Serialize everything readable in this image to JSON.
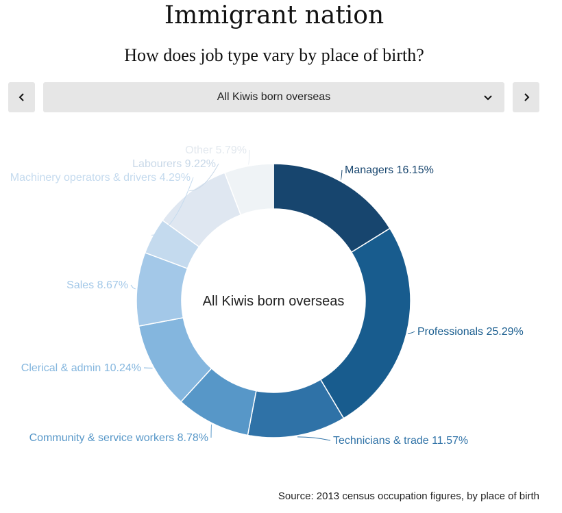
{
  "header": {
    "title": "Immigrant nation",
    "subtitle": "How does job type vary by place of birth?"
  },
  "controls": {
    "selected": "All Kiwis born overseas",
    "prev_icon": "chevron-left-icon",
    "next_icon": "chevron-right-icon",
    "dropdown_icon": "chevron-down-icon"
  },
  "chart_data": {
    "type": "pie",
    "style": "donut",
    "center_label": "All Kiwis born overseas",
    "slices": [
      {
        "label": "Managers 16.15%",
        "name": "Managers",
        "value": 16.15,
        "color": "#17456e"
      },
      {
        "label": "Professionals 25.29%",
        "name": "Professionals",
        "value": 25.29,
        "color": "#185c8e"
      },
      {
        "label": "Technicians & trade 11.57%",
        "name": "Technicians & trade",
        "value": 11.57,
        "color": "#2f72a7"
      },
      {
        "label": "Community & service workers 8.78%",
        "name": "Community & service workers",
        "value": 8.78,
        "color": "#5797c8"
      },
      {
        "label": "Clerical & admin 10.24%",
        "name": "Clerical & admin",
        "value": 10.24,
        "color": "#84b6de"
      },
      {
        "label": "Sales 8.67%",
        "name": "Sales",
        "value": 8.67,
        "color": "#a3c8e8"
      },
      {
        "label": "Machinery operators & drivers 4.29%",
        "name": "Machinery operators & drivers",
        "value": 4.29,
        "color": "#c4daee"
      },
      {
        "label": "Labourers 9.22%",
        "name": "Labourers",
        "value": 9.22,
        "color": "#dfe7f1"
      },
      {
        "label": "Other 5.79%",
        "name": "Other",
        "value": 5.79,
        "color": "#eff3f6"
      }
    ]
  },
  "footer": {
    "source": "Source: 2013 census occupation figures, by place of birth"
  }
}
